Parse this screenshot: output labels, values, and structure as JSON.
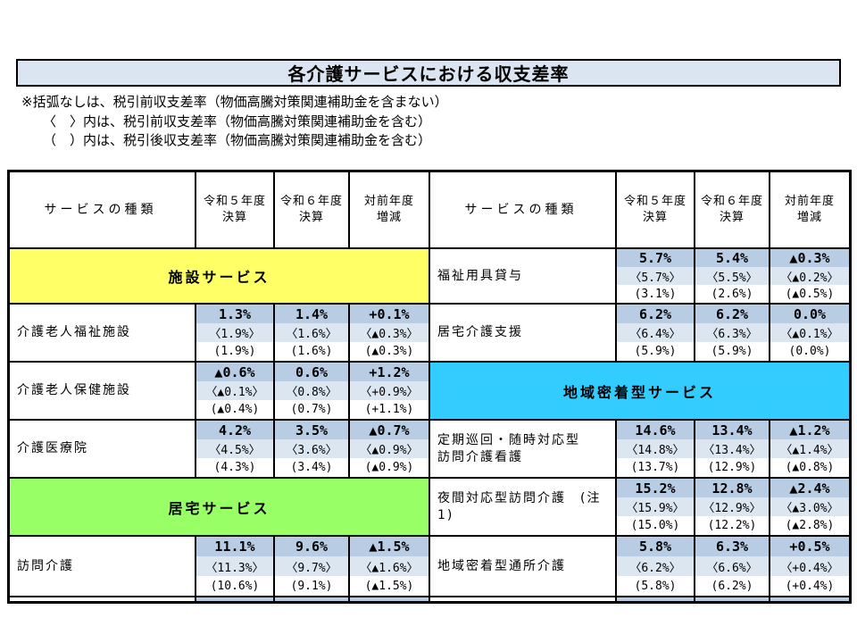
{
  "title": "各介護サービスにおける収支差率",
  "notes": [
    "※括弧なしは、税引前収支差率（物価高騰対策関連補助金を含まない）",
    "〈　〉内は、税引前収支差率（物価高騰対策関連補助金を含む）",
    "（　）内は、税引後収支差率（物価高騰対策関連補助金を含む）"
  ],
  "columns": {
    "service": "サービスの種類",
    "y5_line1": "令和５年度",
    "y5_line2": "決算",
    "y6_line1": "令和６年度",
    "y6_line2": "決算",
    "diff_line1": "対前年度",
    "diff_line2": "増減"
  },
  "colors": {
    "title_bg": "#dbe5f1",
    "banner_facility": "#ffff66",
    "banner_home": "#99ff66",
    "banner_community": "#33ccff",
    "value_row1_bg": "#b8cce4",
    "value_row2_bg": "#dce6f1",
    "border": "#000000"
  },
  "rows": [
    {
      "left": {
        "type": "banner",
        "id": "banner-facility-services",
        "label": "施設サービス",
        "color_key": "banner_facility"
      },
      "right": {
        "type": "service",
        "id": "row-welfare-equipment-rental",
        "name": "福祉用具貸与",
        "lines": [
          [
            "5.7%",
            "5.4%",
            "▲0.3%"
          ],
          [
            "〈5.7%〉",
            "〈5.5%〉",
            "〈▲0.2%〉"
          ],
          [
            "(3.1%)",
            "(2.6%)",
            "(▲0.5%)"
          ]
        ]
      }
    },
    {
      "left": {
        "type": "service",
        "id": "row-elderly-welfare-facility",
        "name": "介護老人福祉施設",
        "lines": [
          [
            "1.3%",
            "1.4%",
            "+0.1%"
          ],
          [
            "〈1.9%〉",
            "〈1.6%〉",
            "〈▲0.3%〉"
          ],
          [
            "(1.9%)",
            "(1.6%)",
            "(▲0.3%)"
          ]
        ]
      },
      "right": {
        "type": "service",
        "id": "row-home-care-support",
        "name": "居宅介護支援",
        "lines": [
          [
            "6.2%",
            "6.2%",
            "0.0%"
          ],
          [
            "〈6.4%〉",
            "〈6.3%〉",
            "〈▲0.1%〉"
          ],
          [
            "(5.9%)",
            "(5.9%)",
            "(0.0%)"
          ]
        ]
      }
    },
    {
      "left": {
        "type": "service",
        "id": "row-elderly-health-facility",
        "name": "介護老人保健施設",
        "lines": [
          [
            "▲0.6%",
            "0.6%",
            "+1.2%"
          ],
          [
            "〈▲0.1%〉",
            "〈0.8%〉",
            "〈+0.9%〉"
          ],
          [
            "(▲0.4%)",
            "(0.7%)",
            "(+1.1%)"
          ]
        ]
      },
      "right": {
        "type": "banner",
        "id": "banner-community-based-services",
        "label": "地域密着型サービス",
        "color_key": "banner_community"
      }
    },
    {
      "left": {
        "type": "service",
        "id": "row-care-medical-institute",
        "name": "介護医療院",
        "lines": [
          [
            "4.2%",
            "3.5%",
            "▲0.7%"
          ],
          [
            "〈4.5%〉",
            "〈3.6%〉",
            "〈▲0.9%〉"
          ],
          [
            "(4.3%)",
            "(3.4%)",
            "(▲0.9%)"
          ]
        ]
      },
      "right": {
        "type": "service",
        "id": "row-regular-patrol-visiting-nursing",
        "name": "定期巡回・随時対応型\n訪問介護看護",
        "lines": [
          [
            "14.6%",
            "13.4%",
            "▲1.2%"
          ],
          [
            "〈14.8%〉",
            "〈13.4%〉",
            "〈▲1.4%〉"
          ],
          [
            "(13.7%)",
            "(12.9%)",
            "(▲0.8%)"
          ]
        ]
      }
    },
    {
      "left": {
        "type": "banner",
        "id": "banner-home-services",
        "label": "居宅サービス",
        "color_key": "banner_home"
      },
      "right": {
        "type": "service",
        "id": "row-night-visiting-care",
        "name": "夜間対応型訪問介護　(注1)",
        "lines": [
          [
            "15.2%",
            "12.8%",
            "▲2.4%"
          ],
          [
            "〈15.9%〉",
            "〈12.9%〉",
            "〈▲3.0%〉"
          ],
          [
            "(15.0%)",
            "(12.2%)",
            "(▲2.8%)"
          ]
        ]
      }
    },
    {
      "left": {
        "type": "service",
        "id": "row-visiting-care",
        "name": "訪問介護",
        "lines": [
          [
            "11.1%",
            "9.6%",
            "▲1.5%"
          ],
          [
            "〈11.3%〉",
            "〈9.7%〉",
            "〈▲1.6%〉"
          ],
          [
            "(10.6%)",
            "(9.1%)",
            "(▲1.5%)"
          ]
        ]
      },
      "right": {
        "type": "service",
        "id": "row-community-based-day-care",
        "name": "地域密着型通所介護",
        "lines": [
          [
            "5.8%",
            "6.3%",
            "+0.5%"
          ],
          [
            "〈6.2%〉",
            "〈6.6%〉",
            "〈+0.4%〉"
          ],
          [
            "(5.8%)",
            "(6.2%)",
            "(+0.4%)"
          ]
        ]
      }
    },
    {
      "left": {
        "type": "partial",
        "id": "row-cutoff-left"
      },
      "right": {
        "type": "partial",
        "id": "row-cutoff-right"
      }
    }
  ]
}
